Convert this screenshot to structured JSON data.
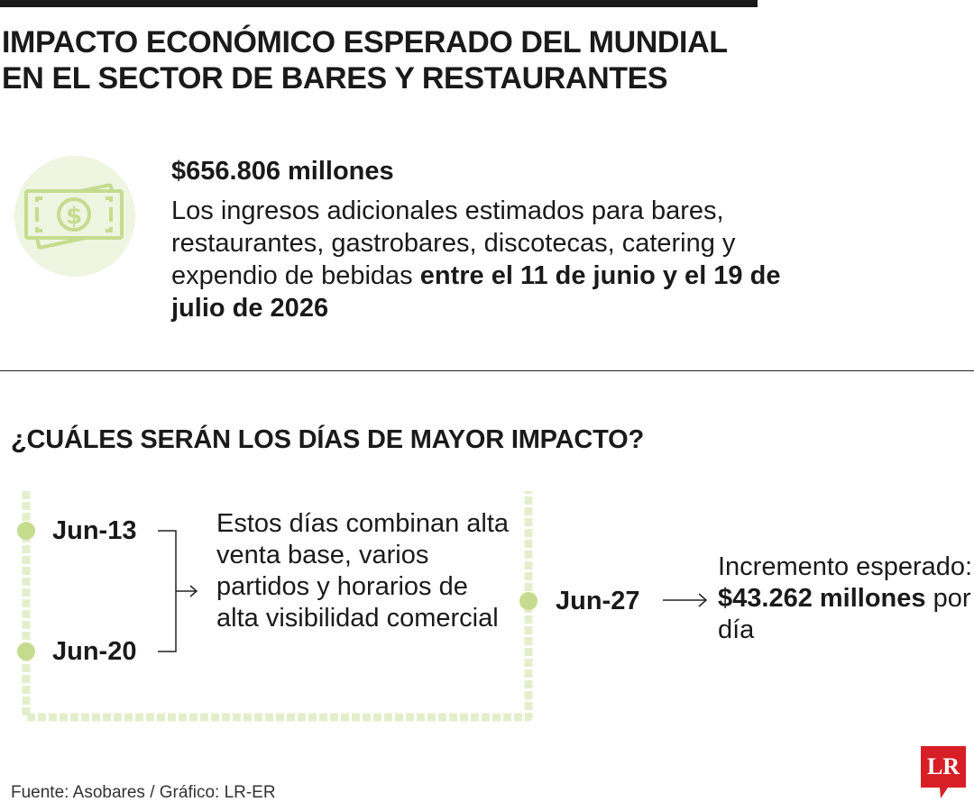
{
  "title": {
    "line1": "IMPACTO ECONÓMICO ESPERADO DEL MUNDIAL",
    "line2": "EN EL SECTOR DE BARES Y RESTAURANTES"
  },
  "summary": {
    "amount": "$656.806 millones",
    "text_plain": "Los ingresos adicionales estimados para bares, restaurantes, gastrobares, discotecas, catering y expendio de bebidas ",
    "text_bold": "entre el 11 de junio y el 19 de julio de 2026",
    "icon": "money-bill-icon"
  },
  "section": {
    "subtitle": "¿CUÁLES SERÁN LOS DÍAS DE MAYOR IMPACTO?"
  },
  "timeline": {
    "date1": "Jun-13",
    "date2": "Jun-20",
    "note": "Estos días combinan alta venta base, varios partidos y horarios de alta visibilidad comercial",
    "date3": "Jun-27",
    "increment_plain1": "Incremento esperado: ",
    "increment_bold": "$43.262 millones",
    "increment_plain2": " por día"
  },
  "footer": {
    "source": "Fuente: Asobares / Gráfico: LR-ER",
    "logo": "LR"
  },
  "colors": {
    "accent_green": "#c5dc8f",
    "light_green": "#e3efcb",
    "pale_green_bg": "#eef5e0",
    "logo_red": "#d61f26",
    "text": "#1a1a1a"
  }
}
